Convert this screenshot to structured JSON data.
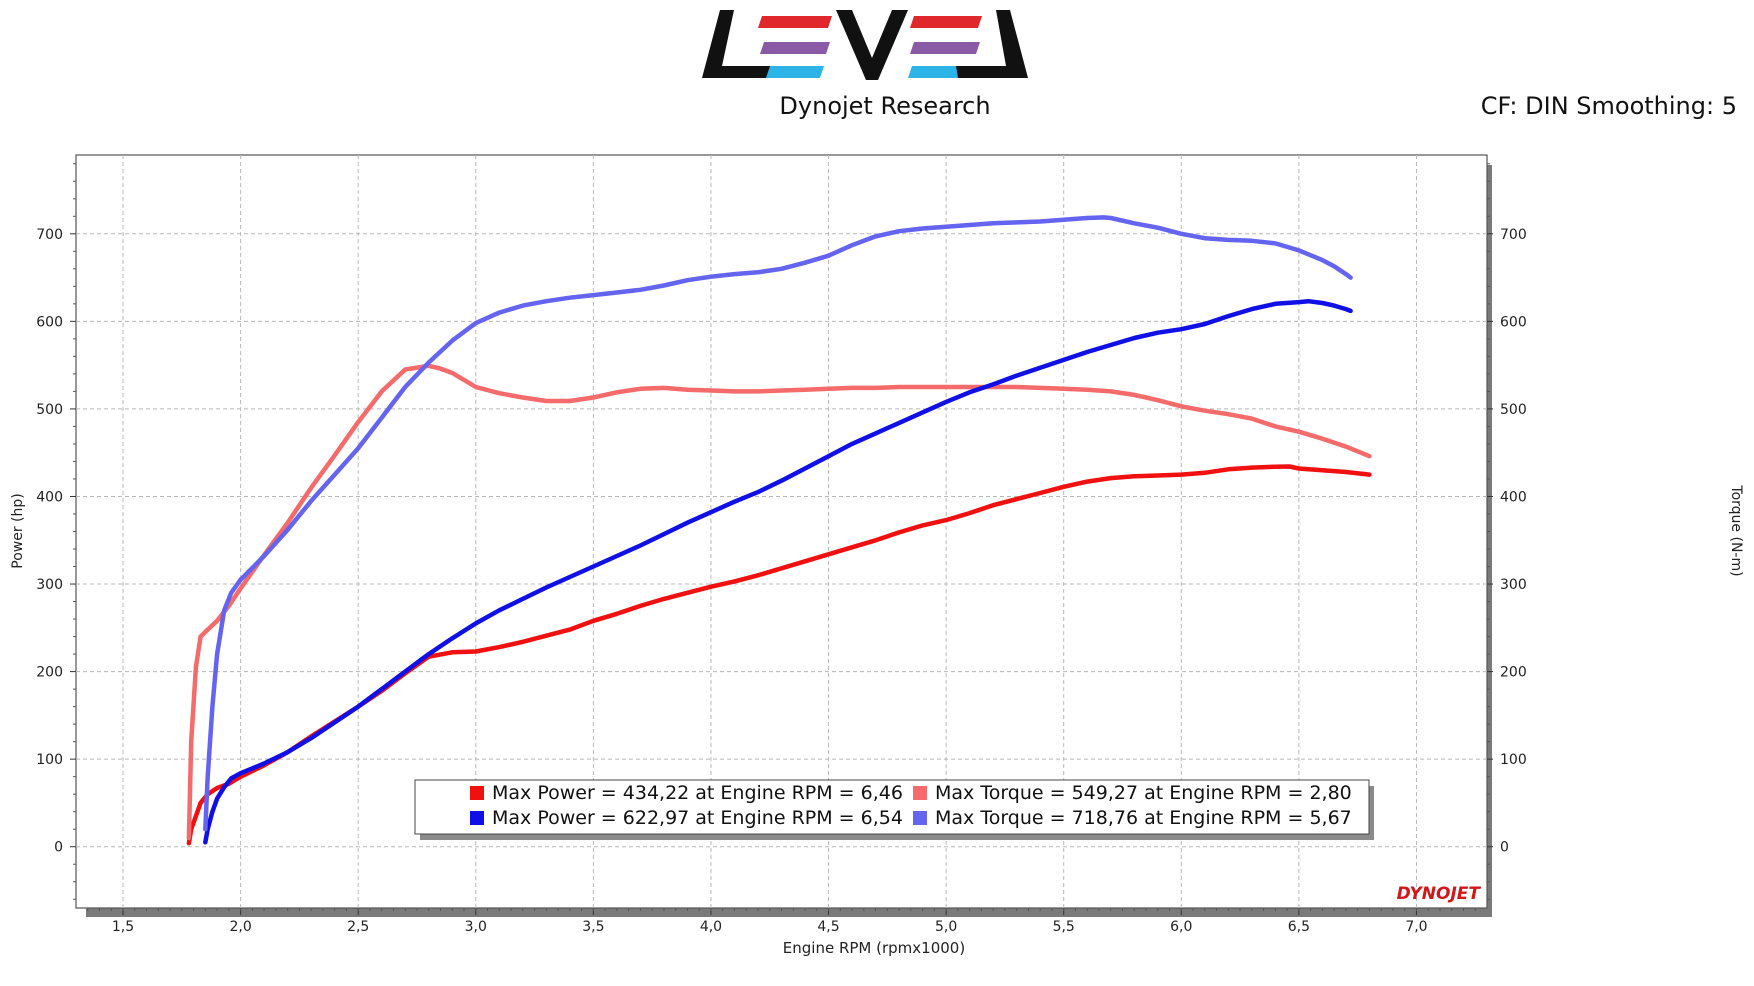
{
  "header": {
    "logo_text": "LEVEL",
    "subtitle": "Dynojet Research",
    "cf_label": "CF: DIN Smoothing: 5",
    "brand_watermark": "DYNOJET"
  },
  "colors": {
    "power_run1": "#f01010",
    "torque_run1": "#f56a6a",
    "power_run2": "#1010e6",
    "torque_run2": "#6464f0",
    "logo_black": "#111111",
    "logo_red": "#e0282c",
    "logo_purple": "#8a5aa6",
    "logo_cyan": "#2cb4e6"
  },
  "chart_data": {
    "type": "line",
    "title": "",
    "xlabel": "Engine RPM (rpmx1000)",
    "ylabel": "Power (hp)",
    "y2label": "Torque (N-m)",
    "xlim": [
      1.3,
      7.3
    ],
    "ylim": [
      -70,
      790
    ],
    "y2lim": [
      -70,
      790
    ],
    "xticks": [
      "1,5",
      "2,0",
      "2,5",
      "3,0",
      "3,5",
      "4,0",
      "4,5",
      "5,0",
      "5,5",
      "6,0",
      "6,5",
      "7,0"
    ],
    "yticks": [
      "0",
      "100",
      "200",
      "300",
      "400",
      "500",
      "600",
      "700"
    ],
    "y2ticks": [
      "0",
      "100",
      "200",
      "300",
      "400",
      "500",
      "600",
      "700"
    ],
    "grid": true,
    "legend_position": "bottom-center",
    "legend": [
      "Max Power = 434,22 at Engine RPM = 6,46",
      "Max Torque = 549,27 at Engine RPM = 2,80",
      "Max Power = 622,97 at Engine RPM = 6,54",
      "Max Torque = 718,76 at Engine RPM = 5,67"
    ],
    "series": [
      {
        "name": "Max Power = 434,22 at Engine RPM = 6,46",
        "axis": "left",
        "x": [
          1.78,
          1.79,
          1.81,
          1.83,
          1.86,
          1.9,
          1.95,
          2.0,
          2.1,
          2.2,
          2.3,
          2.4,
          2.5,
          2.6,
          2.7,
          2.8,
          2.9,
          3.0,
          3.1,
          3.2,
          3.3,
          3.4,
          3.5,
          3.6,
          3.7,
          3.8,
          3.9,
          4.0,
          4.1,
          4.2,
          4.3,
          4.4,
          4.5,
          4.6,
          4.7,
          4.8,
          4.9,
          5.0,
          5.1,
          5.2,
          5.3,
          5.4,
          5.5,
          5.6,
          5.7,
          5.8,
          5.9,
          6.0,
          6.1,
          6.2,
          6.3,
          6.4,
          6.46,
          6.5,
          6.6,
          6.7,
          6.8
        ],
        "y": [
          4,
          20,
          35,
          50,
          60,
          67,
          72,
          80,
          93,
          108,
          126,
          143,
          160,
          178,
          198,
          217,
          222,
          223,
          228,
          234,
          241,
          248,
          258,
          266,
          275,
          283,
          290,
          297,
          303,
          310,
          318,
          326,
          334,
          342,
          350,
          359,
          367,
          373,
          381,
          390,
          397,
          404,
          411,
          417,
          421,
          423,
          424,
          425,
          427,
          431,
          433,
          434,
          434.22,
          432,
          430,
          428,
          425
        ]
      },
      {
        "name": "Max Torque = 549,27 at Engine RPM = 2,80",
        "axis": "right",
        "x": [
          1.78,
          1.79,
          1.81,
          1.83,
          1.86,
          1.9,
          1.95,
          2.0,
          2.1,
          2.2,
          2.3,
          2.4,
          2.5,
          2.6,
          2.7,
          2.8,
          2.85,
          2.9,
          3.0,
          3.1,
          3.2,
          3.3,
          3.4,
          3.5,
          3.6,
          3.7,
          3.8,
          3.9,
          4.0,
          4.1,
          4.2,
          4.3,
          4.4,
          4.5,
          4.6,
          4.7,
          4.8,
          4.9,
          5.0,
          5.1,
          5.2,
          5.3,
          5.4,
          5.5,
          5.6,
          5.7,
          5.8,
          5.9,
          6.0,
          6.1,
          6.2,
          6.3,
          6.4,
          6.5,
          6.6,
          6.7,
          6.8
        ],
        "y": [
          10,
          120,
          205,
          240,
          248,
          258,
          275,
          295,
          333,
          370,
          410,
          447,
          485,
          520,
          545,
          549.27,
          546,
          541,
          525,
          518,
          513,
          509,
          509,
          513,
          519,
          523,
          524,
          522,
          521,
          520,
          520,
          521,
          522,
          523,
          524,
          524,
          525,
          525,
          525,
          525,
          525,
          525,
          524,
          523,
          522,
          520,
          516,
          510,
          503,
          498,
          494,
          489,
          480,
          474,
          466,
          457,
          446
        ]
      },
      {
        "name": "Max Power = 622,97 at Engine RPM = 6,54",
        "axis": "left",
        "x": [
          1.85,
          1.86,
          1.88,
          1.9,
          1.93,
          1.96,
          2.0,
          2.1,
          2.2,
          2.3,
          2.4,
          2.5,
          2.6,
          2.7,
          2.8,
          2.9,
          3.0,
          3.1,
          3.2,
          3.3,
          3.4,
          3.5,
          3.6,
          3.7,
          3.8,
          3.9,
          4.0,
          4.1,
          4.2,
          4.3,
          4.4,
          4.5,
          4.6,
          4.7,
          4.8,
          4.9,
          5.0,
          5.1,
          5.2,
          5.3,
          5.4,
          5.5,
          5.6,
          5.7,
          5.8,
          5.9,
          6.0,
          6.1,
          6.2,
          6.3,
          6.4,
          6.5,
          6.54,
          6.6,
          6.65,
          6.7,
          6.72
        ],
        "y": [
          5,
          20,
          40,
          55,
          68,
          78,
          84,
          95,
          108,
          124,
          142,
          160,
          180,
          200,
          220,
          238,
          255,
          270,
          283,
          296,
          308,
          320,
          332,
          344,
          357,
          370,
          382,
          394,
          405,
          418,
          432,
          446,
          460,
          472,
          484,
          496,
          508,
          519,
          528,
          538,
          547,
          556,
          565,
          573,
          581,
          587,
          591,
          597,
          606,
          614,
          620,
          622,
          622.97,
          621,
          618,
          614,
          612
        ]
      },
      {
        "name": "Max Torque = 718,76 at Engine RPM = 5,67",
        "axis": "right",
        "x": [
          1.85,
          1.86,
          1.88,
          1.9,
          1.93,
          1.96,
          2.0,
          2.1,
          2.2,
          2.3,
          2.4,
          2.5,
          2.6,
          2.7,
          2.8,
          2.9,
          3.0,
          3.1,
          3.2,
          3.3,
          3.4,
          3.5,
          3.6,
          3.7,
          3.8,
          3.9,
          4.0,
          4.1,
          4.2,
          4.3,
          4.4,
          4.5,
          4.6,
          4.7,
          4.8,
          4.9,
          5.0,
          5.1,
          5.2,
          5.3,
          5.4,
          5.5,
          5.6,
          5.67,
          5.7,
          5.8,
          5.9,
          6.0,
          6.1,
          6.2,
          6.3,
          6.4,
          6.5,
          6.6,
          6.65,
          6.7,
          6.72
        ],
        "y": [
          20,
          80,
          160,
          220,
          270,
          290,
          305,
          332,
          362,
          395,
          425,
          455,
          490,
          525,
          553,
          578,
          598,
          610,
          618,
          623,
          627,
          630,
          633,
          636,
          641,
          647,
          651,
          654,
          656,
          660,
          667,
          675,
          687,
          697,
          703,
          706,
          708,
          710,
          712,
          713,
          714,
          716,
          718,
          718.76,
          718,
          712,
          707,
          700,
          695,
          693,
          692,
          689,
          681,
          670,
          663,
          654,
          650
        ]
      }
    ]
  }
}
